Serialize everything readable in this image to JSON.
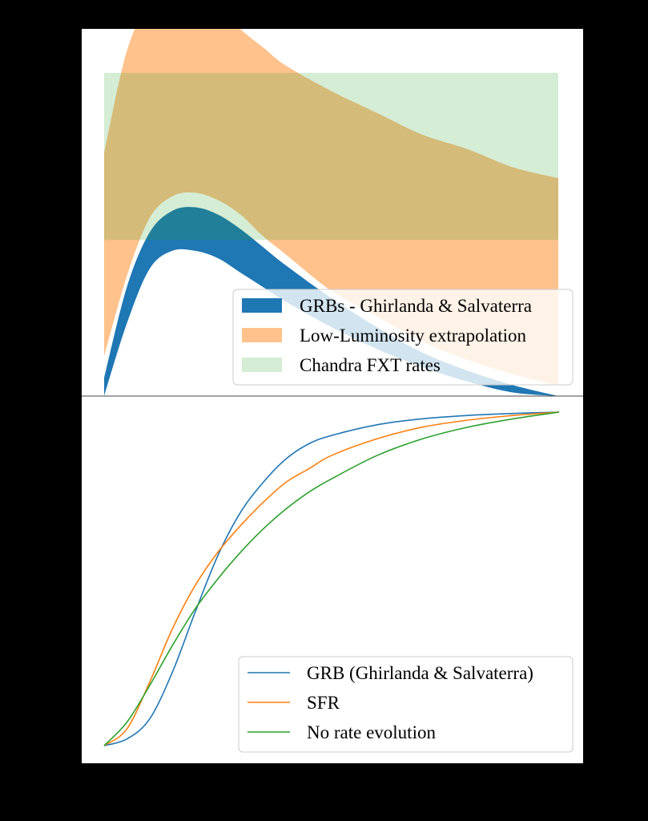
{
  "chart_data": [
    {
      "type": "area",
      "x": {
        "range": [
          0,
          1
        ],
        "ticks": []
      },
      "y": {
        "range": [
          0,
          1
        ],
        "ticks": []
      },
      "series": [
        {
          "name": "GRBs - Ghirlanda & Salvaterra",
          "color": "#1f77b4",
          "alpha": 1.0,
          "kind": "band",
          "x": [
            0.0,
            0.05,
            0.1,
            0.15,
            0.2,
            0.25,
            0.3,
            0.35,
            0.4,
            0.5,
            0.6,
            0.7,
            0.8,
            0.9,
            1.0
          ],
          "lower": [
            0.0,
            0.2,
            0.35,
            0.4,
            0.4,
            0.38,
            0.34,
            0.3,
            0.26,
            0.19,
            0.13,
            0.08,
            0.04,
            0.01,
            0.0
          ],
          "upper": [
            0.05,
            0.3,
            0.45,
            0.51,
            0.52,
            0.5,
            0.46,
            0.41,
            0.36,
            0.27,
            0.19,
            0.12,
            0.07,
            0.03,
            0.0
          ]
        },
        {
          "name": "Low-Luminosity extrapolation",
          "color": "#ff7f0e",
          "alpha": 0.48,
          "kind": "band",
          "x": [
            0.0,
            0.05,
            0.1,
            0.15,
            0.2,
            0.25,
            0.3,
            0.35,
            0.4,
            0.5,
            0.6,
            0.7,
            0.8,
            0.9,
            1.0
          ],
          "lower": [
            0.11,
            0.33,
            0.49,
            0.55,
            0.56,
            0.54,
            0.5,
            0.44,
            0.39,
            0.29,
            0.22,
            0.15,
            0.1,
            0.06,
            0.03
          ],
          "upper": [
            0.67,
            0.95,
            1.08,
            1.12,
            1.11,
            1.07,
            1.01,
            0.96,
            0.91,
            0.84,
            0.78,
            0.72,
            0.68,
            0.63,
            0.6
          ]
        },
        {
          "name": "Chandra FXT rates",
          "color": "#2ca02c",
          "alpha": 0.2,
          "kind": "box",
          "x_range": [
            0.0,
            1.0
          ],
          "y_range": [
            0.43,
            0.89
          ]
        }
      ],
      "legend": {
        "position": "lower right"
      },
      "grid": false
    },
    {
      "type": "line",
      "x": {
        "range": [
          0,
          1
        ],
        "ticks": []
      },
      "y": {
        "range": [
          0,
          1
        ],
        "ticks": []
      },
      "series": [
        {
          "name": "GRB (Ghirlanda & Salvaterra)",
          "color": "#1f77b4",
          "x": [
            0.0,
            0.05,
            0.1,
            0.15,
            0.2,
            0.25,
            0.3,
            0.35,
            0.4,
            0.45,
            0.5,
            0.6,
            0.7,
            0.8,
            0.9,
            1.0
          ],
          "y": [
            0.0,
            0.02,
            0.08,
            0.22,
            0.4,
            0.57,
            0.7,
            0.79,
            0.86,
            0.905,
            0.93,
            0.962,
            0.98,
            0.99,
            0.996,
            1.0
          ]
        },
        {
          "name": "SFR",
          "color": "#ff7f0e",
          "x": [
            0.0,
            0.05,
            0.1,
            0.15,
            0.2,
            0.25,
            0.3,
            0.35,
            0.4,
            0.45,
            0.5,
            0.6,
            0.7,
            0.8,
            0.9,
            1.0
          ],
          "y": [
            0.0,
            0.05,
            0.19,
            0.35,
            0.48,
            0.58,
            0.66,
            0.73,
            0.79,
            0.83,
            0.87,
            0.92,
            0.955,
            0.976,
            0.99,
            1.0
          ]
        },
        {
          "name": "No rate evolution",
          "color": "#2ca02c",
          "x": [
            0.0,
            0.05,
            0.1,
            0.15,
            0.2,
            0.25,
            0.3,
            0.35,
            0.4,
            0.45,
            0.5,
            0.6,
            0.7,
            0.8,
            0.9,
            1.0
          ],
          "y": [
            0.0,
            0.07,
            0.18,
            0.3,
            0.41,
            0.5,
            0.58,
            0.65,
            0.71,
            0.76,
            0.8,
            0.87,
            0.92,
            0.955,
            0.98,
            1.0
          ]
        }
      ],
      "legend": {
        "position": "lower right"
      },
      "grid": false
    }
  ]
}
